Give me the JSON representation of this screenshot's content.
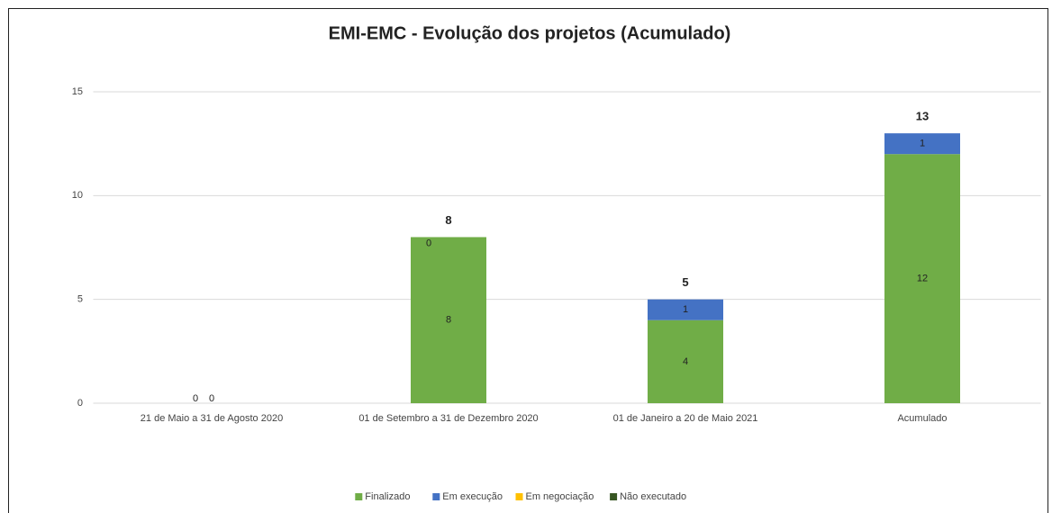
{
  "chart_data": {
    "type": "stacked_bar",
    "title": "EMI-EMC - Evolução dos projetos (Acumulado)",
    "categories": [
      "21 de Maio a 31 de Agosto 2020",
      "01 de Setembro a 31 de Dezembro 2020",
      "01 de Janeiro a 20 de Maio 2021",
      "Acumulado"
    ],
    "series": [
      {
        "name": "Finalizado",
        "color": "#70ad47",
        "values": [
          0,
          8,
          4,
          12
        ]
      },
      {
        "name": "Em execução",
        "color": "#4472c4",
        "values": [
          null,
          0,
          1,
          1
        ]
      },
      {
        "name": "Em negociação",
        "color": "#ffc000",
        "values": [
          null,
          null,
          null,
          null
        ]
      },
      {
        "name": "Não executado",
        "color": "#375623",
        "values": [
          null,
          null,
          null,
          null
        ]
      }
    ],
    "totals": [
      0,
      8,
      5,
      13
    ],
    "ylim": [
      0,
      15
    ],
    "yticks": [
      0,
      5,
      10,
      15
    ],
    "grid": true,
    "legend": "bottom"
  }
}
